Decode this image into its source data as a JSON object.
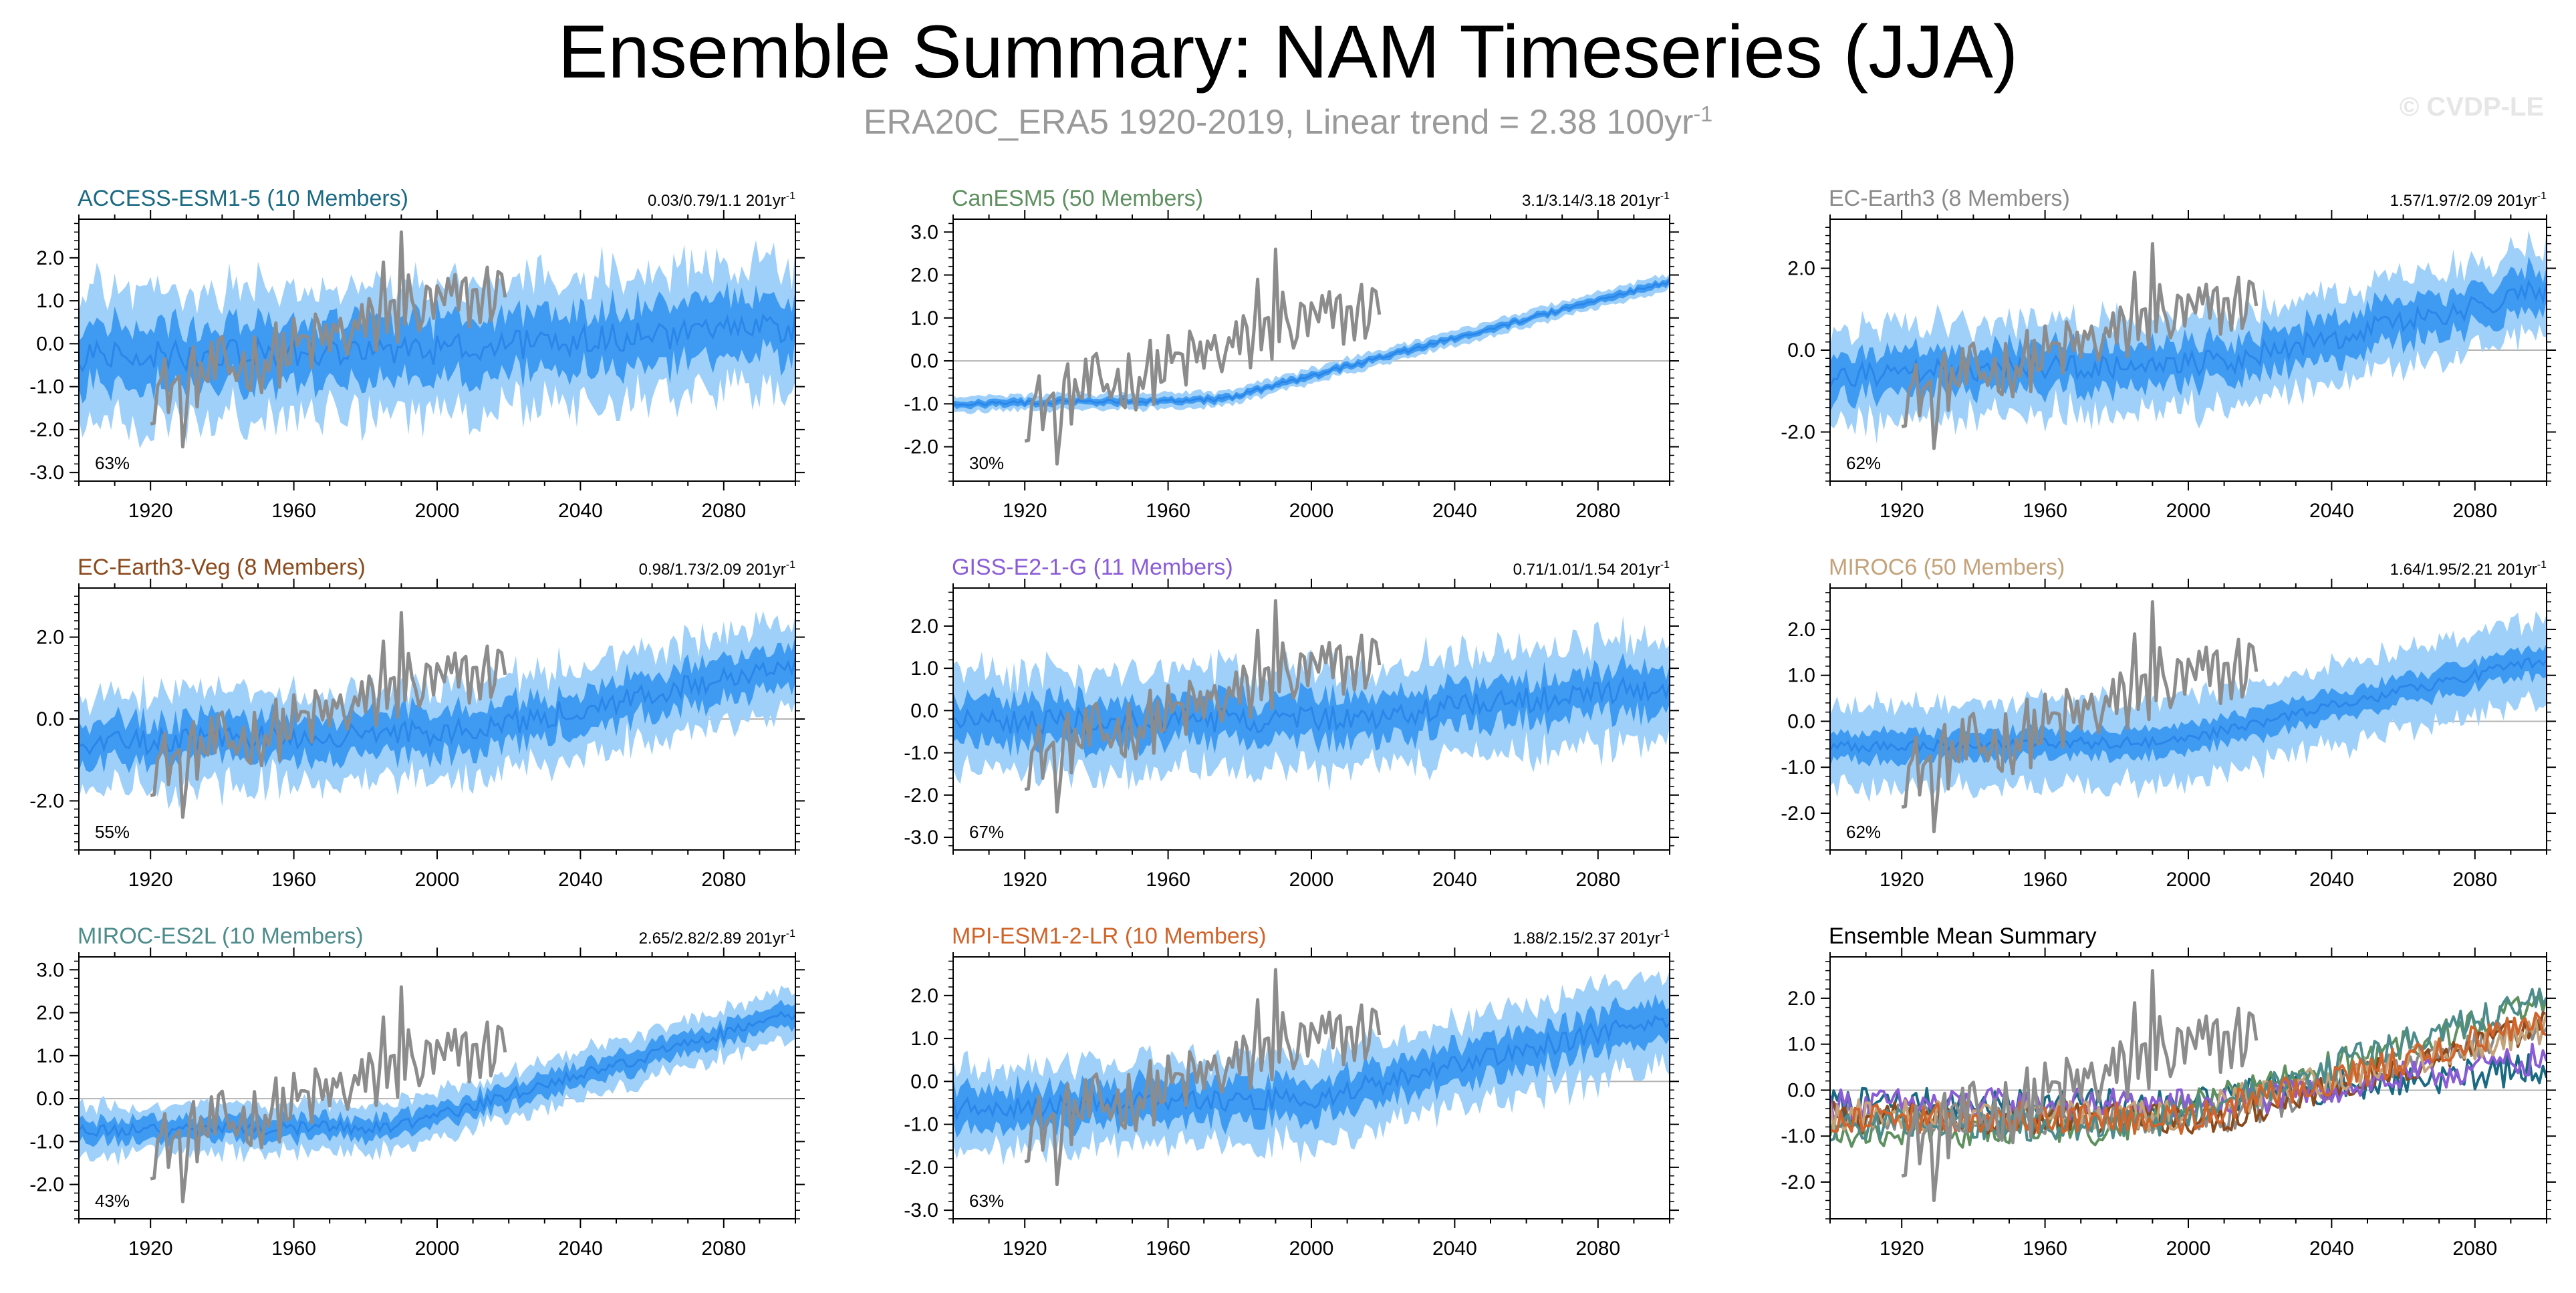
{
  "title": "Ensemble Summary: NAM Timeseries (JJA)",
  "subtitle_text": "ERA20C_ERA5 1920-2019, Linear trend = 2.38 100yr",
  "subtitle_exp": "-1",
  "watermark": "© CVDP-LE",
  "colors": {
    "band_outer": "#9fd0fa",
    "band_inner": "#3f9bf2",
    "mean_line": "#2a86e8",
    "obs_line": "#8c8c8c",
    "zero_line": "#b4b4b4"
  },
  "chart_data": [
    {
      "type": "area",
      "model": "ACCESS-ESM1-5",
      "members": "(10 Members)",
      "title": "ACCESS-ESM1-5 (10 Members)",
      "title_color": "#1b6a83",
      "trend_text": "0.03/0.79/1.1 201yr",
      "trend_exp": "-1",
      "rank_label": "63%",
      "xlim": [
        1900,
        2100
      ],
      "xticks": [
        "1920",
        "1960",
        "2000",
        "2040",
        "2080"
      ],
      "ylim": [
        -3.2,
        2.9
      ],
      "yticks": [
        "2.0",
        "1.0",
        "0.0",
        "-1.0",
        "-2.0",
        "-3.0"
      ],
      "mean_start": -0.3,
      "mean_mid": -0.2,
      "mean_end": 0.4,
      "turn_year": 1990,
      "inner_spread": 0.7,
      "outer_spread": 1.5,
      "noise": 0.35
    },
    {
      "type": "area",
      "model": "CanESM5",
      "members": "(50 Members)",
      "title": "CanESM5 (50 Members)",
      "title_color": "#5e9060",
      "trend_text": "3.1/3.14/3.18 201yr",
      "trend_exp": "-1",
      "rank_label": "30%",
      "xlim": [
        1900,
        2100
      ],
      "xticks": [
        "1920",
        "1960",
        "2000",
        "2040",
        "2080"
      ],
      "ylim": [
        -2.8,
        3.3
      ],
      "yticks": [
        "3.0",
        "2.0",
        "1.0",
        "0.0",
        "-1.0",
        "-2.0"
      ],
      "mean_start": -1.0,
      "mean_mid": -0.9,
      "mean_end": 1.85,
      "turn_year": 1975,
      "inner_spread": 0.08,
      "outer_spread": 0.18,
      "noise": 0.05
    },
    {
      "type": "area",
      "model": "EC-Earth3",
      "members": "(8 Members)",
      "title": "EC-Earth3 (8 Members)",
      "title_color": "#8a8a8a",
      "trend_text": "1.57/1.97/2.09 201yr",
      "trend_exp": "-1",
      "rank_label": "62%",
      "xlim": [
        1900,
        2100
      ],
      "xticks": [
        "1920",
        "1960",
        "2000",
        "2040",
        "2080"
      ],
      "ylim": [
        -3.2,
        3.2
      ],
      "yticks": [
        "2.0",
        "0.0",
        "-2.0"
      ],
      "mean_start": -0.6,
      "mean_mid": -0.3,
      "mean_end": 1.5,
      "turn_year": 2010,
      "inner_spread": 0.5,
      "outer_spread": 1.1,
      "noise": 0.3
    },
    {
      "type": "area",
      "model": "EC-Earth3-Veg",
      "members": "(8 Members)",
      "title": "EC-Earth3-Veg (8 Members)",
      "title_color": "#8a4a1c",
      "trend_text": "0.98/1.73/2.09 201yr",
      "trend_exp": "-1",
      "rank_label": "55%",
      "xlim": [
        1900,
        2100
      ],
      "xticks": [
        "1920",
        "1960",
        "2000",
        "2040",
        "2080"
      ],
      "ylim": [
        -3.2,
        3.2
      ],
      "yticks": [
        "2.0",
        "0.0",
        "-2.0"
      ],
      "mean_start": -0.6,
      "mean_mid": -0.3,
      "mean_end": 1.4,
      "turn_year": 2010,
      "inner_spread": 0.5,
      "outer_spread": 1.1,
      "noise": 0.3
    },
    {
      "type": "area",
      "model": "GISS-E2-1-G",
      "members": "(11 Members)",
      "title": "GISS-E2-1-G (11 Members)",
      "title_color": "#8a5cd6",
      "trend_text": "0.71/1.01/1.54 201yr",
      "trend_exp": "-1",
      "rank_label": "67%",
      "xlim": [
        1900,
        2100
      ],
      "xticks": [
        "1920",
        "1960",
        "2000",
        "2040",
        "2080"
      ],
      "ylim": [
        -3.3,
        2.9
      ],
      "yticks": [
        "2.0",
        "1.0",
        "0.0",
        "-1.0",
        "-2.0",
        "-3.0"
      ],
      "mean_start": -0.3,
      "mean_mid": -0.2,
      "mean_end": 0.6,
      "turn_year": 2010,
      "inner_spread": 0.5,
      "outer_spread": 1.2,
      "noise": 0.3
    },
    {
      "type": "area",
      "model": "MIROC6",
      "members": "(50 Members)",
      "title": "MIROC6 (50 Members)",
      "title_color": "#c4a27a",
      "trend_text": "1.64/1.95/2.21 201yr",
      "trend_exp": "-1",
      "rank_label": "62%",
      "xlim": [
        1900,
        2100
      ],
      "xticks": [
        "1920",
        "1960",
        "2000",
        "2040",
        "2080"
      ],
      "ylim": [
        -2.8,
        2.9
      ],
      "yticks": [
        "2.0",
        "1.0",
        "0.0",
        "-1.0",
        "-2.0"
      ],
      "mean_start": -0.55,
      "mean_mid": -0.45,
      "mean_end": 1.35,
      "turn_year": 1995,
      "inner_spread": 0.3,
      "outer_spread": 0.9,
      "noise": 0.12
    },
    {
      "type": "area",
      "model": "MIROC-ES2L",
      "members": "(10 Members)",
      "title": "MIROC-ES2L (10 Members)",
      "title_color": "#4d8c8c",
      "trend_text": "2.65/2.82/2.89 201yr",
      "trend_exp": "-1",
      "rank_label": "43%",
      "xlim": [
        1900,
        2100
      ],
      "xticks": [
        "1920",
        "1960",
        "2000",
        "2040",
        "2080"
      ],
      "ylim": [
        -2.8,
        3.3
      ],
      "yticks": [
        "3.0",
        "2.0",
        "1.0",
        "0.0",
        "-1.0",
        "-2.0"
      ],
      "mean_start": -0.75,
      "mean_mid": -0.65,
      "mean_end": 2.0,
      "turn_year": 1990,
      "inner_spread": 0.25,
      "outer_spread": 0.55,
      "noise": 0.15
    },
    {
      "type": "area",
      "model": "MPI-ESM1-2-LR",
      "members": "(10 Members)",
      "title": "MPI-ESM1-2-LR (10 Members)",
      "title_color": "#d0642b",
      "trend_text": "1.88/2.15/2.37 201yr",
      "trend_exp": "-1",
      "rank_label": "63%",
      "xlim": [
        1900,
        2100
      ],
      "xticks": [
        "1920",
        "1960",
        "2000",
        "2040",
        "2080"
      ],
      "ylim": [
        -3.2,
        2.9
      ],
      "yticks": [
        "2.0",
        "1.0",
        "0.0",
        "-1.0",
        "-2.0",
        "-3.0"
      ],
      "mean_start": -0.6,
      "mean_mid": -0.4,
      "mean_end": 1.5,
      "turn_year": 2000,
      "inner_spread": 0.45,
      "outer_spread": 1.0,
      "noise": 0.25
    },
    {
      "type": "line",
      "model": "Ensemble Mean Summary",
      "members": "",
      "title": "Ensemble Mean Summary",
      "title_color": "#000000",
      "trend_text": "",
      "trend_exp": "",
      "rank_label": "",
      "xlim": [
        1900,
        2100
      ],
      "xticks": [
        "1920",
        "1960",
        "2000",
        "2040",
        "2080"
      ],
      "ylim": [
        -2.8,
        2.9
      ],
      "yticks": [
        "2.0",
        "1.0",
        "0.0",
        "-1.0",
        "-2.0"
      ],
      "series": [
        {
          "name": "ACCESS-ESM1-5",
          "color": "#1b6a83",
          "start": -0.3,
          "end": 0.5,
          "turn_year": 1990
        },
        {
          "name": "CanESM5",
          "color": "#5e9060",
          "start": -0.9,
          "end": 1.85,
          "turn_year": 1975
        },
        {
          "name": "EC-Earth3",
          "color": "#8a8a8a",
          "start": -0.6,
          "end": 1.5,
          "turn_year": 2010
        },
        {
          "name": "EC-Earth3-Veg",
          "color": "#8a4a1c",
          "start": -0.6,
          "end": 1.4,
          "turn_year": 2010
        },
        {
          "name": "GISS-E2-1-G",
          "color": "#8a5cd6",
          "start": -0.3,
          "end": 0.7,
          "turn_year": 2010
        },
        {
          "name": "MIROC6",
          "color": "#c4a27a",
          "start": -0.55,
          "end": 1.35,
          "turn_year": 1995
        },
        {
          "name": "MIROC-ES2L",
          "color": "#4d8c8c",
          "start": -0.75,
          "end": 2.0,
          "turn_year": 1990
        },
        {
          "name": "MPI-ESM1-2-LR",
          "color": "#d0642b",
          "start": -0.6,
          "end": 1.5,
          "turn_year": 2000
        }
      ]
    }
  ]
}
